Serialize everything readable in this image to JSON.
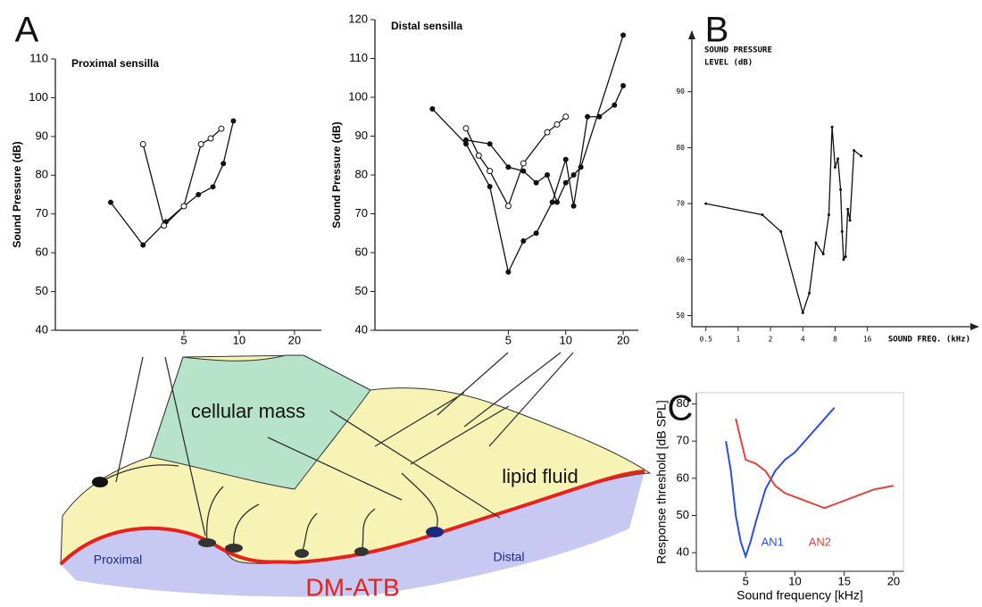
{
  "panel_labels": [
    "A",
    "B",
    "C"
  ],
  "chart_data": [
    {
      "type": "line",
      "title": "Proximal sensilla",
      "y_label": "Sound Pressure (dB)",
      "x_scale": "log",
      "xlim": [
        1,
        28
      ],
      "xticks": [
        5,
        10,
        20
      ],
      "ylim": [
        40,
        110
      ],
      "yticks": [
        40,
        50,
        60,
        70,
        80,
        90,
        100,
        110
      ],
      "series": [
        {
          "marker": "filled",
          "color": "#111111",
          "x": [
            2,
            3,
            4,
            5,
            6,
            7.2,
            8.2,
            9.3
          ],
          "values": [
            73,
            62,
            68,
            72,
            75,
            77,
            83,
            94
          ]
        },
        {
          "marker": "open",
          "color": "#111111",
          "x": [
            3,
            3.9,
            5,
            6.2,
            7,
            8
          ],
          "values": [
            88,
            67,
            72,
            88,
            89.5,
            92
          ]
        }
      ]
    },
    {
      "type": "line",
      "title": "Distal sensilla",
      "y_label": "Sound Pressure (dB)",
      "x_scale": "log",
      "xlim": [
        1,
        24
      ],
      "xticks": [
        5,
        10,
        20
      ],
      "ylim": [
        40,
        120
      ],
      "yticks": [
        40,
        50,
        60,
        70,
        80,
        90,
        100,
        110,
        120
      ],
      "series": [
        {
          "marker": "filled",
          "color": "#111111",
          "x": [
            2,
            3,
            4,
            5,
            6,
            7,
            8.5,
            10,
            11,
            13,
            15,
            18,
            20
          ],
          "values": [
            97,
            88,
            77,
            55,
            63,
            65,
            73,
            84,
            72,
            95,
            95,
            98,
            103
          ]
        },
        {
          "marker": "open",
          "color": "#111111",
          "x": [
            3,
            3.5,
            4,
            5,
            6,
            8,
            9,
            10
          ],
          "values": [
            92,
            85,
            81,
            72,
            83,
            91,
            93,
            95
          ]
        },
        {
          "marker": "filled",
          "color": "#111111",
          "x": [
            3,
            4,
            5,
            6,
            7,
            8,
            9,
            10,
            11,
            12,
            20
          ],
          "values": [
            89,
            88,
            82,
            81,
            78,
            80,
            73,
            78,
            80,
            82,
            116
          ]
        }
      ]
    },
    {
      "type": "line",
      "y_label": [
        "SOUND PRESSURE",
        "LEVEL  (dB)"
      ],
      "x_label": "SOUND FREQ. (kHz)",
      "x_scale": "log",
      "xlim": [
        0.37,
        170
      ],
      "xticks": [
        0.5,
        1,
        2,
        4,
        8,
        16
      ],
      "ylim": [
        48,
        100
      ],
      "yticks": [
        50,
        60,
        70,
        80,
        90
      ],
      "series": [
        {
          "marker": "dot",
          "color": "#111111",
          "x": [
            0.5,
            1.68,
            2.5,
            4,
            4.6,
            5.3,
            6.2,
            7,
            7.5,
            8,
            8.5,
            9,
            9.3,
            9.6,
            10,
            10.5,
            11,
            12,
            14
          ],
          "values": [
            70,
            68,
            65,
            50.5,
            54,
            63,
            61,
            68,
            83.7,
            76.5,
            78,
            72.5,
            65,
            60,
            60.5,
            69,
            67,
            79.5,
            78.5
          ]
        }
      ]
    },
    {
      "type": "line",
      "y_label": "Response threshold [dB SPL]",
      "x_label": "Sound frequency [kHz]",
      "x_scale": "linear",
      "xlim": [
        0,
        21
      ],
      "xticks": [
        5,
        10,
        15,
        20
      ],
      "ylim": [
        35,
        83
      ],
      "yticks": [
        40,
        50,
        60,
        70,
        80
      ],
      "series": [
        {
          "name": "AN1",
          "marker": "none",
          "color": "#2b4fe0",
          "x": [
            3,
            3.5,
            4,
            4.5,
            5,
            5.5,
            6,
            7,
            8,
            9,
            10,
            12,
            14
          ],
          "values": [
            70,
            62,
            50,
            43,
            39,
            43,
            48,
            57,
            62,
            65,
            67,
            73,
            79
          ]
        },
        {
          "name": "AN2",
          "marker": "none",
          "color": "#e0443c",
          "x": [
            4,
            5,
            6,
            7,
            8,
            9,
            10,
            11,
            12,
            13,
            14,
            16,
            18,
            20
          ],
          "values": [
            76,
            65,
            64,
            62,
            58,
            56,
            55,
            54,
            53,
            52,
            53,
            55,
            57,
            58
          ]
        }
      ]
    }
  ],
  "diagram": {
    "cellular": "cellular mass",
    "lipid": "lipid fluid",
    "proximal": "Proximal",
    "distal": "Distal",
    "membrane": "DM-ATB"
  }
}
